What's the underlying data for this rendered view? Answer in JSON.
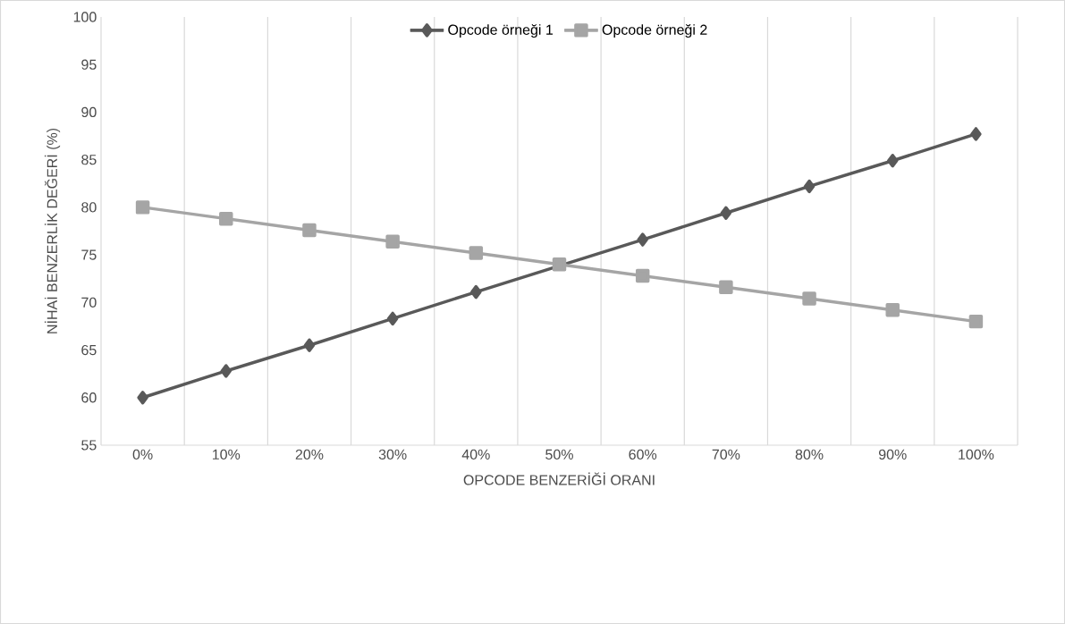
{
  "chart_data": {
    "type": "line",
    "xlabel": "OPCODE BENZERİĞİ ORANI",
    "ylabel": "NİHAİ BENZERLİK DEĞERİ (%)",
    "categories": [
      "0%",
      "10%",
      "20%",
      "30%",
      "40%",
      "50%",
      "60%",
      "70%",
      "80%",
      "90%",
      "100%"
    ],
    "series": [
      {
        "name": "Opcode örneği 1",
        "color": "#595959",
        "marker": "diamond",
        "values": [
          60,
          62.8,
          65.5,
          68.3,
          71.1,
          null,
          76.6,
          79.4,
          82.2,
          84.9,
          87.7
        ]
      },
      {
        "name": "Opcode örneği 2",
        "color": "#a5a5a5",
        "marker": "square",
        "values": [
          80,
          78.8,
          77.6,
          76.4,
          75.2,
          74,
          72.8,
          71.6,
          70.4,
          69.2,
          68
        ]
      }
    ],
    "ylim": [
      55,
      100
    ],
    "yticks": [
      55,
      60,
      65,
      70,
      75,
      80,
      85,
      90,
      95,
      100
    ],
    "grid": "x",
    "legend": "top",
    "line_style": "solid"
  }
}
